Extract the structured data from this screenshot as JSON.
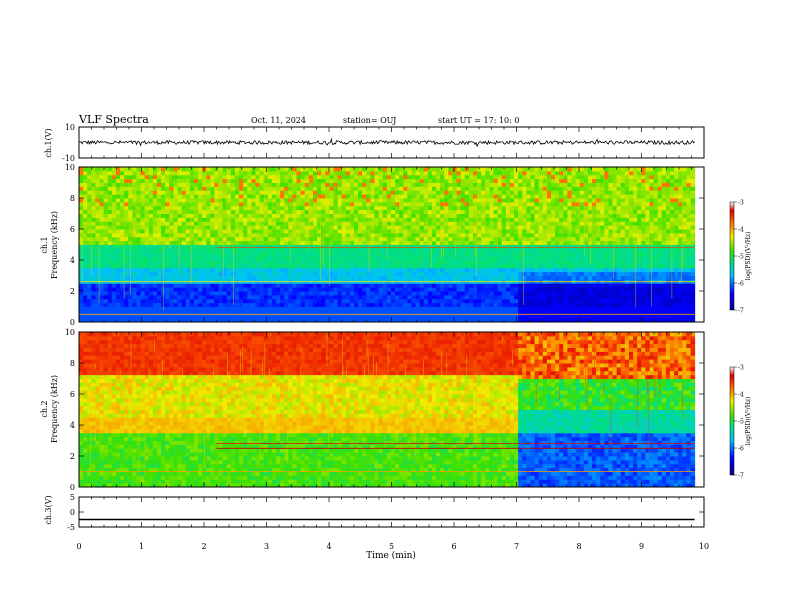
{
  "header": {
    "title": "VLF Spectra",
    "date": "Oct. 11, 2024",
    "station": "station= OUJ",
    "start": "start  UT =  17: 10: 0"
  },
  "chart_data": {
    "type": "heatmap",
    "xlabel": "Time  (min)",
    "xlim": [
      0,
      10
    ],
    "x_ticks": [
      "0",
      "1",
      "2",
      "3",
      "4",
      "5",
      "6",
      "7",
      "8",
      "9",
      "10"
    ],
    "panels": [
      {
        "id": "ch1-waveform",
        "type": "line",
        "ylabel": "ch.1(V)",
        "ylim": [
          -10,
          10
        ],
        "y_ticks": [
          "10",
          "-10"
        ],
        "description_values": {
          "baseline_v": 0.0,
          "noise_amplitude_v": 1.2,
          "data_end_min": 9.85
        }
      },
      {
        "id": "ch1-spectrogram",
        "type": "heatmap",
        "ylabel": "ch.1\nFrequency  (kHz)",
        "ylim": [
          0,
          10
        ],
        "y_ticks": [
          "0",
          "2",
          "4",
          "6",
          "8",
          "10"
        ],
        "colorbar": {
          "label": "log(PSD)(V²/Hz)",
          "range": [
            -7,
            -3
          ],
          "ticks": [
            "-3",
            "-4",
            "-5",
            "-6",
            "-7"
          ]
        },
        "data_end_min": 9.85
      },
      {
        "id": "ch2-spectrogram",
        "type": "heatmap",
        "ylabel": "ch.2\nFrequency  (kHz)",
        "ylim": [
          0,
          10
        ],
        "y_ticks": [
          "0",
          "2",
          "4",
          "6",
          "8",
          "10"
        ],
        "colorbar": {
          "label": "log(PSD)(V²/Hz)",
          "range": [
            -7,
            -3
          ],
          "ticks": [
            "-3",
            "-4",
            "-5",
            "-6",
            "-7"
          ]
        },
        "data_end_min": 9.85,
        "transition_min": 7.0
      },
      {
        "id": "ch3-waveform",
        "type": "line",
        "ylabel": "ch.3(V)",
        "ylim": [
          -5,
          5
        ],
        "y_ticks": [
          "5",
          "0",
          "-5"
        ],
        "description_values": {
          "baseline_v": -2.5,
          "data_end_min": 9.85
        }
      }
    ]
  }
}
